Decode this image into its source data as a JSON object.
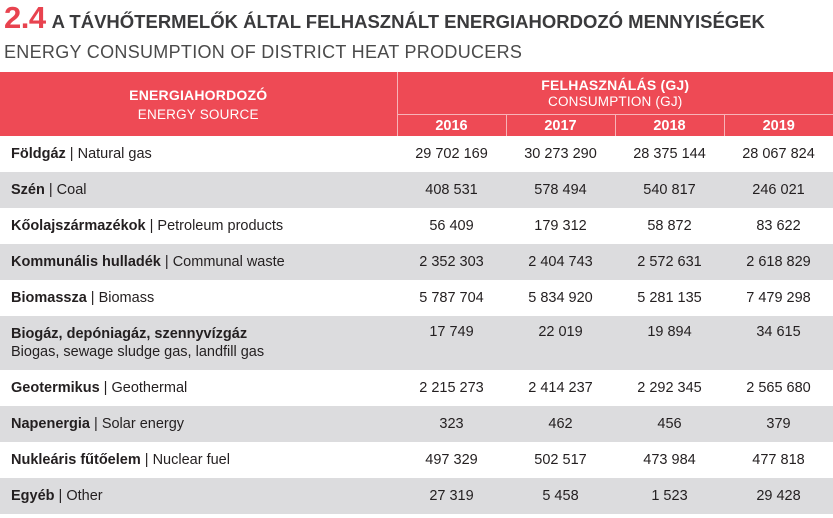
{
  "header": {
    "section_number": "2.4",
    "title_hu": "A TÁVHŐTERMELŐK ÁLTAL FELHASZNÁLT ENERGIAHORDOZÓ MENNYISÉGEK",
    "title_en": "ENERGY CONSUMPTION OF DISTRICT HEAT PRODUCERS"
  },
  "table": {
    "source_header_hu": "ENERGIAHORDOZÓ",
    "source_header_en": "ENERGY SOURCE",
    "consumption_header_hu": "FELHASZNÁLÁS (GJ)",
    "consumption_header_en": "CONSUMPTION (GJ)",
    "years": [
      "2016",
      "2017",
      "2018",
      "2019"
    ],
    "rows": [
      {
        "name_hu": "Földgáz",
        "separator": " | ",
        "name_en": "Natural gas",
        "values": [
          "29 702 169",
          "30 273 290",
          "28 375 144",
          "28 067 824"
        ]
      },
      {
        "name_hu": "Szén",
        "separator": " | ",
        "name_en": "Coal",
        "values": [
          "408 531",
          "578 494",
          "540 817",
          "246 021"
        ]
      },
      {
        "name_hu": "Kőolajszármazékok",
        "separator": " | ",
        "name_en": "Petroleum products",
        "values": [
          "56 409",
          "179 312",
          "58 872",
          "83 622"
        ]
      },
      {
        "name_hu": "Kommunális hulladék",
        "separator": " | ",
        "name_en": "Communal waste",
        "values": [
          "2 352 303",
          "2 404 743",
          "2 572 631",
          "2 618 829"
        ]
      },
      {
        "name_hu": "Biomassza",
        "separator": " | ",
        "name_en": "Biomass",
        "values": [
          "5 787 704",
          "5 834 920",
          "5 281 135",
          "7 479 298"
        ]
      },
      {
        "name_hu": "Biogáz, depóniagáz, szennyvízgáz",
        "name_en": "Biogas, sewage sludge gas, landfill gas",
        "values": [
          "17 749",
          "22 019",
          "19 894",
          "34 615"
        ]
      },
      {
        "name_hu": "Geotermikus",
        "separator": " | ",
        "name_en": "Geothermal",
        "values": [
          "2 215 273",
          "2 414 237",
          "2 292 345",
          "2 565 680"
        ]
      },
      {
        "name_hu": "Napenergia",
        "separator": " | ",
        "name_en": "Solar energy",
        "values": [
          "323",
          "462",
          "456",
          "379"
        ]
      },
      {
        "name_hu": "Nukleáris fűtőelem",
        "separator": " | ",
        "name_en": "Nuclear fuel",
        "values": [
          "497 329",
          "502 517",
          "473 984",
          "477 818"
        ]
      },
      {
        "name_hu": "Egyéb",
        "separator": " | ",
        "name_en": "Other",
        "values": [
          "27 319",
          "5 458",
          "1 523",
          "29 428"
        ]
      }
    ]
  }
}
